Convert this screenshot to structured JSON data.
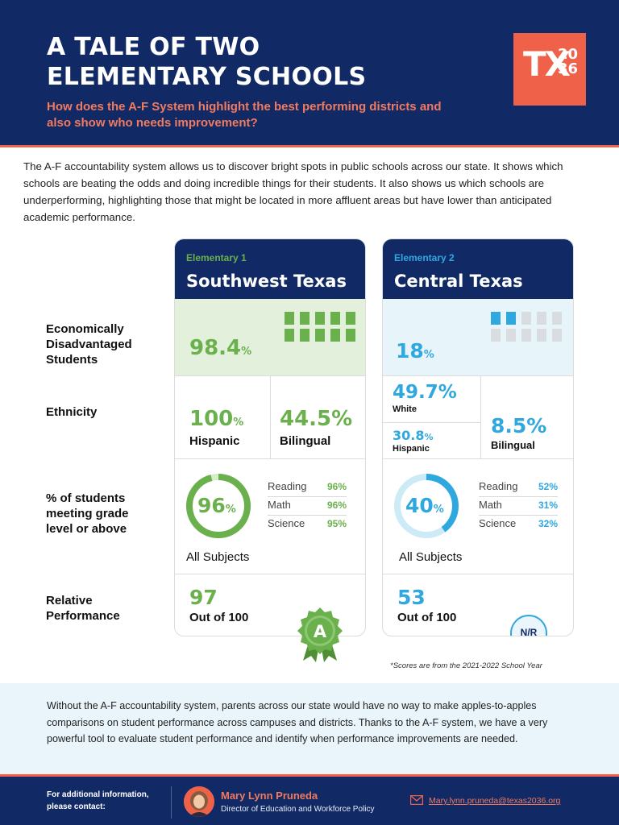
{
  "header": {
    "title_line1": "A TALE OF TWO",
    "title_line2": "ELEMENTARY SCHOOLS",
    "subtitle": "How does the A-F System highlight the best performing districts and also show who needs improvement?",
    "logo_tx": "TX",
    "logo_num_top": "20",
    "logo_num_bottom": "36"
  },
  "intro": "The A-F accountability system allows us to discover bright spots in public schools across our state.  It shows which schools are beating the odds and doing incredible things for their students.  It also shows us which schools are underperforming, highlighting those that might be located in more affluent areas but have lower than anticipated academic performance.",
  "row_labels": {
    "econ": "Economically Disadvantaged Students",
    "ethnicity": "Ethnicity",
    "grade_level": "% of students meeting grade level or above",
    "relative": "Relative Performance"
  },
  "schools": [
    {
      "tag": "Elementary 1",
      "name": "Southwest Texas",
      "econ_value": "98.4",
      "econ_fraction": 0.984,
      "hispanic_value": "100",
      "hispanic_label": "Hispanic",
      "bilingual_value": "44.5",
      "bilingual_label": "Bilingual",
      "all_subjects_value": "96",
      "all_subjects_fraction": 0.96,
      "all_subjects_label": "All Subjects",
      "subjects": [
        {
          "name": "Reading",
          "value": "96%"
        },
        {
          "name": "Math",
          "value": "96%"
        },
        {
          "name": "Science",
          "value": "95%"
        }
      ],
      "relative_value": "97",
      "relative_label": "Out of 100",
      "rating": "A"
    },
    {
      "tag": "Elementary 2",
      "name": "Central Texas",
      "econ_value": "18",
      "econ_fraction": 0.18,
      "white_value": "49.7",
      "white_label": "White",
      "hispanic_value": "30.8",
      "hispanic_label": "Hispanic",
      "bilingual_value": "8.5",
      "bilingual_label": "Bilingual",
      "all_subjects_value": "40",
      "all_subjects_fraction": 0.4,
      "all_subjects_label": "All Subjects",
      "subjects": [
        {
          "name": "Reading",
          "value": "52%"
        },
        {
          "name": "Math",
          "value": "31%"
        },
        {
          "name": "Science",
          "value": "32%"
        }
      ],
      "relative_value": "53",
      "relative_label": "Out of 100",
      "rating": "N/R"
    }
  ],
  "pct_sign": "%",
  "footnote": "*Scores are from the 2021-2022 School Year",
  "closing": "Without the A-F accountability system, parents across our state would have no way to make apples-to-apples comparisons on student performance across campuses and districts. Thanks to the A-F system, we have a very powerful tool to evaluate student performance and identify when performance improvements are needed.",
  "footer": {
    "contact_label": "For additional information, please contact:",
    "contact_name": "Mary Lynn Pruneda",
    "contact_role": "Director of Education and Workforce Policy",
    "contact_email": "Mary.lynn.pruneda@texas2036.org"
  },
  "colors": {
    "navy": "#112a66",
    "coral": "#f0614a",
    "green": "#6ab04c",
    "blue": "#2fa8e0",
    "light_green": "#e3f1dc",
    "light_blue": "#e7f5fb"
  },
  "icons": [
    "person-icon",
    "badge-icon",
    "mail-icon",
    "avatar-photo"
  ]
}
